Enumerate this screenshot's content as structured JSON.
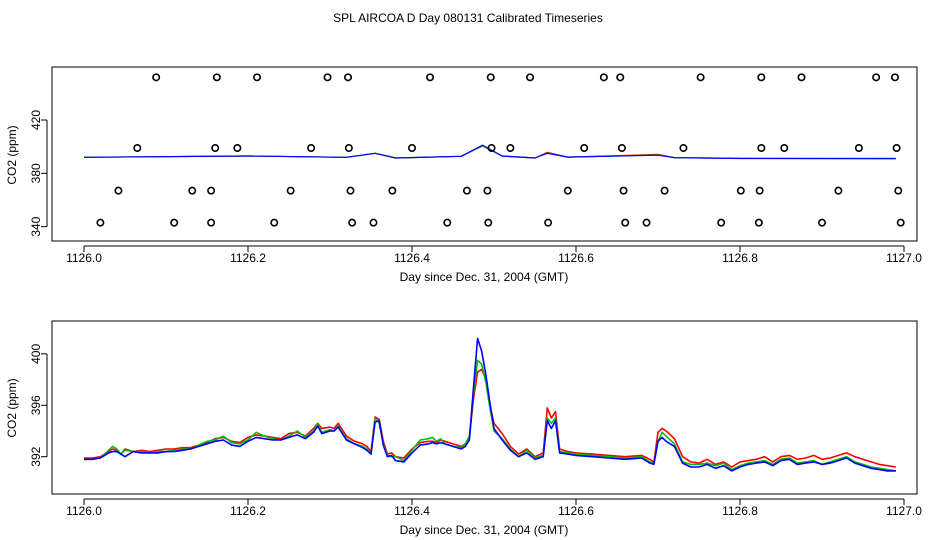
{
  "figure_title": "SPL AIRCOA D  Day 080131  Calibrated Timeseries",
  "chart_data": [
    {
      "type": "scatter",
      "name": "top-panel",
      "xlabel": "Day since Dec. 31, 2004 (GMT)",
      "ylabel": "CO2 (ppm)",
      "xlim": [
        1126.0,
        1127.0
      ],
      "ylim": [
        336,
        456
      ],
      "x_ticks": [
        1126.0,
        1126.2,
        1126.4,
        1126.6,
        1126.8,
        1127.0
      ],
      "x_tick_labels": [
        "1126.0",
        "1126.2",
        "1126.4",
        "1126.6",
        "1126.8",
        "1127.0"
      ],
      "y_ticks": [
        340,
        380,
        420
      ],
      "y_tick_labels": [
        "340",
        "380",
        "420"
      ],
      "scatter_series": [
        {
          "name": "circles-row-1",
          "color": "#000000",
          "y": 452,
          "x": [
            1126.088,
            1126.162,
            1126.211,
            1126.297,
            1126.322,
            1126.422,
            1126.496,
            1126.544,
            1126.634,
            1126.654,
            1126.752,
            1126.826,
            1126.875,
            1126.966,
            1126.989
          ]
        },
        {
          "name": "circles-row-2",
          "color": "#000000",
          "y": 399,
          "x": [
            1126.065,
            1126.16,
            1126.187,
            1126.277,
            1126.323,
            1126.4,
            1126.497,
            1126.52,
            1126.61,
            1126.656,
            1126.731,
            1126.826,
            1126.854,
            1126.945,
            1126.991
          ]
        },
        {
          "name": "circles-row-3",
          "color": "#000000",
          "y": 367,
          "x": [
            1126.042,
            1126.132,
            1126.155,
            1126.252,
            1126.325,
            1126.376,
            1126.467,
            1126.492,
            1126.59,
            1126.658,
            1126.708,
            1126.801,
            1126.824,
            1126.92,
            1126.993
          ]
        },
        {
          "name": "circles-row-4",
          "color": "#000000",
          "y": 343,
          "x": [
            1126.02,
            1126.11,
            1126.155,
            1126.232,
            1126.327,
            1126.353,
            1126.443,
            1126.493,
            1126.566,
            1126.66,
            1126.686,
            1126.777,
            1126.823,
            1126.9,
            1126.996
          ]
        }
      ],
      "series": [
        {
          "name": "red",
          "color": "#ff0000",
          "x": [
            1126.0,
            1126.2,
            1126.32,
            1126.355,
            1126.38,
            1126.46,
            1126.486,
            1126.51,
            1126.55,
            1126.565,
            1126.59,
            1126.7,
            1126.72,
            1126.8,
            1126.99
          ],
          "y": [
            392,
            393,
            392,
            395,
            391.5,
            392.8,
            400.5,
            393,
            391.5,
            395.8,
            392.2,
            394.2,
            391.8,
            391.2,
            391.2
          ]
        },
        {
          "name": "green",
          "color": "#00c000",
          "x": [
            1126.0,
            1126.2,
            1126.32,
            1126.355,
            1126.38,
            1126.46,
            1126.486,
            1126.51,
            1126.55,
            1126.565,
            1126.59,
            1126.7,
            1126.72,
            1126.8,
            1126.99
          ],
          "y": [
            392,
            393,
            392,
            395,
            391.5,
            392.8,
            400.5,
            393,
            391.5,
            395.2,
            392.2,
            393.8,
            391.8,
            391.2,
            391.0
          ]
        },
        {
          "name": "blue",
          "color": "#0000ff",
          "x": [
            1126.0,
            1126.2,
            1126.32,
            1126.355,
            1126.38,
            1126.46,
            1126.486,
            1126.51,
            1126.55,
            1126.565,
            1126.59,
            1126.7,
            1126.72,
            1126.8,
            1126.99
          ],
          "y": [
            392,
            393,
            392,
            395,
            391.5,
            392.8,
            401.2,
            393,
            391.5,
            395.0,
            392.2,
            393.6,
            391.7,
            391.1,
            391.0
          ]
        }
      ]
    },
    {
      "type": "line",
      "name": "bottom-panel",
      "xlabel": "Day since Dec. 31, 2004 (GMT)",
      "ylabel": "CO2 (ppm)",
      "xlim": [
        1126.0,
        1127.0
      ],
      "ylim": [
        390.5,
        401.7
      ],
      "x_ticks": [
        1126.0,
        1126.2,
        1126.4,
        1126.6,
        1126.8,
        1127.0
      ],
      "x_tick_labels": [
        "1126.0",
        "1126.2",
        "1126.4",
        "1126.6",
        "1126.8",
        "1127.0"
      ],
      "y_ticks": [
        392,
        396,
        400
      ],
      "y_tick_labels": [
        "392",
        "396",
        "400"
      ],
      "x": [
        1126.0,
        1126.01,
        1126.02,
        1126.03,
        1126.035,
        1126.04,
        1126.045,
        1126.05,
        1126.06,
        1126.07,
        1126.08,
        1126.09,
        1126.1,
        1126.11,
        1126.12,
        1126.13,
        1126.14,
        1126.15,
        1126.16,
        1126.17,
        1126.18,
        1126.19,
        1126.2,
        1126.21,
        1126.22,
        1126.23,
        1126.24,
        1126.25,
        1126.26,
        1126.27,
        1126.28,
        1126.285,
        1126.29,
        1126.3,
        1126.305,
        1126.31,
        1126.32,
        1126.33,
        1126.34,
        1126.345,
        1126.35,
        1126.355,
        1126.36,
        1126.365,
        1126.37,
        1126.375,
        1126.38,
        1126.39,
        1126.4,
        1126.41,
        1126.42,
        1126.425,
        1126.43,
        1126.435,
        1126.44,
        1126.45,
        1126.46,
        1126.465,
        1126.47,
        1126.475,
        1126.48,
        1126.485,
        1126.49,
        1126.495,
        1126.5,
        1126.51,
        1126.52,
        1126.53,
        1126.54,
        1126.55,
        1126.56,
        1126.565,
        1126.57,
        1126.575,
        1126.58,
        1126.59,
        1126.6,
        1126.62,
        1126.64,
        1126.66,
        1126.68,
        1126.69,
        1126.695,
        1126.7,
        1126.705,
        1126.71,
        1126.72,
        1126.73,
        1126.74,
        1126.75,
        1126.76,
        1126.77,
        1126.78,
        1126.79,
        1126.8,
        1126.81,
        1126.82,
        1126.83,
        1126.84,
        1126.85,
        1126.86,
        1126.87,
        1126.88,
        1126.89,
        1126.9,
        1126.91,
        1126.92,
        1126.93,
        1126.94,
        1126.95,
        1126.96,
        1126.97,
        1126.98,
        1126.99
      ],
      "series": [
        {
          "name": "red",
          "color": "#ff0000",
          "y": [
            391.9,
            391.9,
            392.0,
            392.4,
            392.6,
            392.5,
            392.2,
            392.6,
            392.4,
            392.5,
            392.4,
            392.5,
            392.6,
            392.6,
            392.7,
            392.7,
            392.9,
            393.1,
            393.4,
            393.5,
            393.2,
            393.1,
            393.5,
            393.7,
            393.6,
            393.5,
            393.4,
            393.8,
            393.9,
            393.6,
            394.2,
            394.6,
            394.2,
            394.3,
            394.2,
            394.6,
            393.6,
            393.2,
            393.0,
            392.8,
            392.4,
            395.1,
            394.9,
            393.2,
            392.2,
            392.3,
            392.0,
            391.9,
            392.6,
            393.1,
            393.2,
            393.2,
            393.1,
            393.3,
            393.2,
            393.0,
            392.8,
            393.0,
            393.5,
            396.5,
            398.6,
            398.8,
            398.0,
            396.0,
            394.6,
            393.8,
            392.8,
            392.2,
            392.6,
            392.0,
            392.3,
            395.8,
            395.0,
            395.5,
            392.6,
            392.4,
            392.3,
            392.2,
            392.1,
            392.0,
            392.1,
            391.8,
            391.6,
            393.9,
            394.2,
            394.0,
            393.4,
            392.0,
            391.6,
            391.5,
            391.8,
            391.4,
            391.6,
            391.2,
            391.6,
            391.7,
            391.8,
            392.0,
            391.6,
            392.0,
            392.1,
            391.8,
            391.9,
            392.1,
            391.8,
            391.9,
            392.1,
            392.3,
            392.0,
            391.8,
            391.6,
            391.4,
            391.3,
            391.2
          ]
        },
        {
          "name": "green",
          "color": "#00c000",
          "y": [
            391.8,
            391.8,
            391.9,
            392.5,
            392.8,
            392.6,
            392.2,
            392.5,
            392.4,
            392.4,
            392.3,
            392.4,
            392.4,
            392.5,
            392.6,
            392.6,
            392.9,
            393.2,
            393.3,
            393.6,
            393.1,
            393.0,
            393.3,
            393.9,
            393.6,
            393.4,
            393.3,
            393.6,
            394.0,
            393.5,
            394.0,
            394.6,
            393.9,
            394.1,
            394.0,
            394.4,
            393.4,
            393.0,
            392.8,
            392.6,
            392.2,
            395.0,
            394.6,
            393.0,
            392.1,
            392.0,
            392.0,
            391.7,
            392.5,
            393.3,
            393.4,
            393.5,
            393.2,
            393.4,
            393.0,
            392.8,
            392.7,
            393.0,
            393.6,
            397.0,
            399.5,
            399.2,
            397.8,
            395.8,
            394.0,
            393.4,
            392.6,
            392.0,
            392.5,
            391.9,
            392.1,
            395.0,
            394.6,
            395.0,
            392.4,
            392.3,
            392.2,
            392.1,
            392.0,
            391.9,
            392.0,
            391.6,
            391.5,
            393.2,
            393.9,
            393.6,
            393.0,
            391.6,
            391.4,
            391.4,
            391.5,
            391.3,
            391.5,
            391.0,
            391.3,
            391.5,
            391.6,
            391.7,
            391.4,
            391.8,
            391.9,
            391.5,
            391.6,
            391.7,
            391.4,
            391.6,
            391.8,
            392.0,
            391.6,
            391.4,
            391.2,
            391.1,
            391.0,
            390.9
          ]
        },
        {
          "name": "blue",
          "color": "#0000ff",
          "y": [
            391.8,
            391.8,
            391.9,
            392.3,
            392.4,
            392.4,
            392.2,
            392.0,
            392.4,
            392.3,
            392.3,
            392.3,
            392.4,
            392.4,
            392.5,
            392.6,
            392.8,
            393.0,
            393.2,
            393.3,
            392.9,
            392.8,
            393.2,
            393.5,
            393.4,
            393.3,
            393.3,
            393.5,
            393.7,
            393.4,
            393.9,
            394.4,
            393.8,
            394.0,
            394.0,
            394.3,
            393.3,
            393.0,
            392.7,
            392.5,
            392.2,
            394.7,
            394.8,
            392.9,
            392.0,
            392.1,
            391.7,
            391.6,
            392.3,
            392.9,
            393.0,
            393.1,
            393.0,
            393.1,
            393.0,
            392.8,
            392.6,
            392.8,
            393.3,
            397.4,
            401.2,
            400.2,
            398.4,
            396.2,
            394.2,
            393.3,
            392.5,
            392.0,
            392.3,
            391.8,
            392.0,
            394.8,
            394.2,
            394.8,
            392.3,
            392.2,
            392.1,
            392.0,
            391.9,
            391.8,
            391.9,
            391.5,
            391.4,
            393.2,
            393.5,
            393.2,
            392.8,
            391.5,
            391.2,
            391.2,
            391.4,
            391.1,
            391.3,
            390.9,
            391.2,
            391.4,
            391.5,
            391.6,
            391.3,
            391.7,
            391.8,
            391.4,
            391.5,
            391.6,
            391.4,
            391.5,
            391.7,
            391.9,
            391.5,
            391.3,
            391.1,
            391.0,
            390.9,
            390.9
          ]
        }
      ]
    }
  ]
}
